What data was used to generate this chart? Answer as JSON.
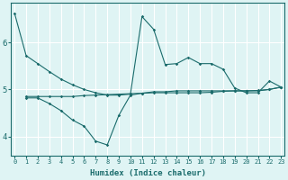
{
  "line1_x": [
    0,
    1,
    2,
    3,
    4,
    5,
    6,
    7,
    8,
    9,
    10,
    11,
    12,
    13,
    14,
    15,
    16,
    17,
    18,
    19,
    20,
    21,
    22,
    23
  ],
  "line1_y": [
    6.62,
    5.72,
    5.55,
    5.38,
    5.22,
    5.1,
    5.0,
    4.93,
    4.88,
    4.88,
    4.9,
    6.55,
    6.28,
    5.53,
    5.55,
    5.68,
    5.55,
    5.55,
    5.43,
    5.03,
    4.93,
    4.93,
    5.18,
    5.05
  ],
  "line2_x": [
    1,
    2,
    3,
    4,
    5,
    6,
    7,
    8,
    9,
    10,
    11,
    12,
    13,
    14,
    15,
    16,
    17,
    18,
    19,
    20,
    21,
    22,
    23
  ],
  "line2_y": [
    4.82,
    4.82,
    4.7,
    4.55,
    4.35,
    4.22,
    3.9,
    3.82,
    4.45,
    4.88,
    4.92,
    4.95,
    4.95,
    4.97,
    4.97,
    4.97,
    4.97,
    4.97,
    4.97,
    4.97,
    4.97,
    5.0,
    5.05
  ],
  "line3_x": [
    1,
    2,
    3,
    4,
    5,
    6,
    7,
    8,
    9,
    10,
    11,
    12,
    13,
    14,
    15,
    16,
    17,
    18,
    19,
    20,
    21,
    22,
    23
  ],
  "line3_y": [
    4.85,
    4.85,
    4.85,
    4.85,
    4.85,
    4.87,
    4.88,
    4.89,
    4.9,
    4.91,
    4.92,
    4.93,
    4.93,
    4.93,
    4.93,
    4.93,
    4.94,
    4.96,
    4.97,
    4.97,
    4.98,
    5.0,
    5.05
  ],
  "line_color": "#1a6b6b",
  "bg_color": "#dff4f4",
  "grid_color": "#ffffff",
  "xlabel": "Humidex (Indice chaleur)",
  "yticks": [
    4,
    5,
    6
  ],
  "xticks": [
    0,
    1,
    2,
    3,
    4,
    5,
    6,
    7,
    8,
    9,
    10,
    11,
    12,
    13,
    14,
    15,
    16,
    17,
    18,
    19,
    20,
    21,
    22,
    23
  ],
  "xlim": [
    -0.3,
    23.3
  ],
  "ylim": [
    3.6,
    6.85
  ]
}
